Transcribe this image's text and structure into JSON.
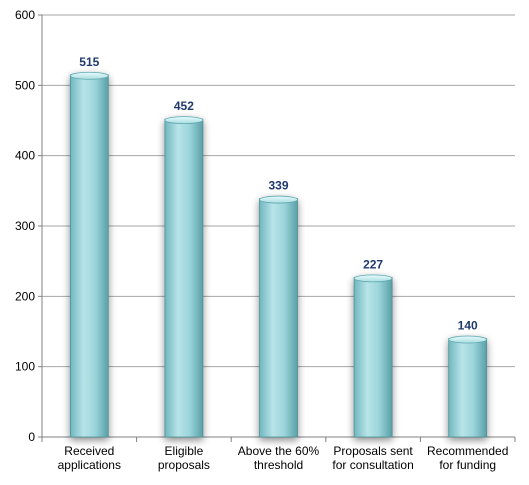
{
  "chart_data": {
    "type": "bar",
    "categories": [
      [
        "Received",
        "applications"
      ],
      [
        "Eligible",
        "proposals"
      ],
      [
        "Above the 60%",
        "threshold"
      ],
      [
        "Proposals sent",
        "for consultation"
      ],
      [
        "Recommended",
        "for funding"
      ]
    ],
    "values": [
      515,
      452,
      339,
      227,
      140
    ],
    "data_labels": [
      "515",
      "452",
      "339",
      "227",
      "140"
    ],
    "ylim": [
      0,
      600
    ],
    "yticks": [
      "0",
      "100",
      "200",
      "300",
      "400",
      "500",
      "600"
    ],
    "grid": true,
    "legend": "none",
    "colors": {
      "bar_light": "#bfe7ea",
      "bar_mid": "#8fd0d6",
      "bar_dark": "#5fa8b0",
      "bar_top": "#d9f3f5",
      "data_label": "#1f3a6e",
      "gridline": "#a6a6a6"
    }
  }
}
